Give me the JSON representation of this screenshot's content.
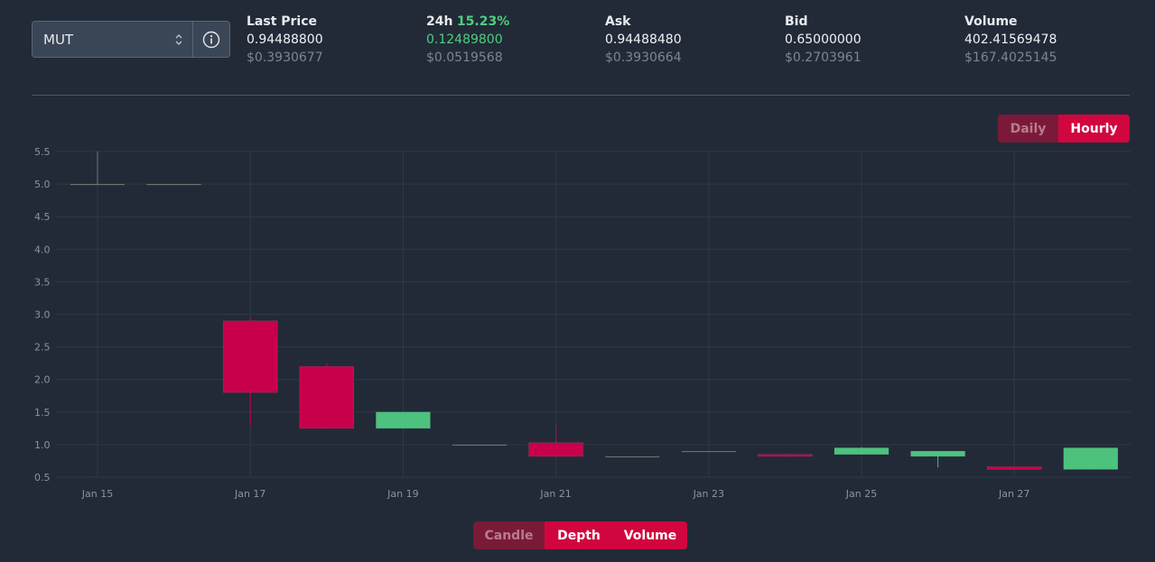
{
  "pair_selector": {
    "value": "MUT"
  },
  "stats": {
    "last_price": {
      "label": "Last Price",
      "value": "0.94488800",
      "usd": "$0.3930677"
    },
    "change_24h": {
      "label": "24h",
      "percent": "15.23%",
      "value": "0.12489800",
      "usd": "$0.0519568"
    },
    "ask": {
      "label": "Ask",
      "value": "0.94488480",
      "usd": "$0.3930664"
    },
    "bid": {
      "label": "Bid",
      "value": "0.65000000",
      "usd": "$0.2703961"
    },
    "volume": {
      "label": "Volume",
      "value": "402.41569478",
      "usd": "$167.4025145"
    }
  },
  "interval_toggle": {
    "daily": "Daily",
    "hourly": "Hourly",
    "active": "Hourly"
  },
  "view_toggle": {
    "candle": "Candle",
    "depth": "Depth",
    "volume": "Volume"
  },
  "colors": {
    "up": "#4cc27d",
    "down": "#c8004b",
    "flat": "#6f7d74",
    "grid": "#2f3849",
    "background": "#222a38"
  },
  "chart_data": {
    "type": "candlestick",
    "ylim": [
      0.5,
      5.5
    ],
    "y_ticks": [
      "0.5",
      "1.0",
      "1.5",
      "2.0",
      "2.5",
      "3.0",
      "3.5",
      "4.0",
      "4.5",
      "5.0",
      "5.5"
    ],
    "x_tick_labels": [
      "Jan 15",
      "Jan 17",
      "Jan 19",
      "Jan 21",
      "Jan 23",
      "Jan 25",
      "Jan 27"
    ],
    "candles": [
      {
        "date": "Jan 15",
        "open": 5.0,
        "high": 5.5,
        "low": 5.0,
        "close": 5.0
      },
      {
        "date": "Jan 16",
        "open": 5.0,
        "high": 5.0,
        "low": 5.0,
        "close": 5.0
      },
      {
        "date": "Jan 17",
        "open": 2.9,
        "high": 2.95,
        "low": 1.3,
        "close": 1.8
      },
      {
        "date": "Jan 18",
        "open": 2.2,
        "high": 2.25,
        "low": 1.25,
        "close": 1.25
      },
      {
        "date": "Jan 19",
        "open": 1.25,
        "high": 1.5,
        "low": 1.25,
        "close": 1.5
      },
      {
        "date": "Jan 20",
        "open": 1.0,
        "high": 1.0,
        "low": 1.0,
        "close": 1.0
      },
      {
        "date": "Jan 21",
        "open": 1.03,
        "high": 1.3,
        "low": 0.82,
        "close": 0.82
      },
      {
        "date": "Jan 22",
        "open": 0.82,
        "high": 0.82,
        "low": 0.82,
        "close": 0.82
      },
      {
        "date": "Jan 23",
        "open": 0.9,
        "high": 0.9,
        "low": 0.9,
        "close": 0.9
      },
      {
        "date": "Jan 24",
        "open": 0.85,
        "high": 0.85,
        "low": 0.82,
        "close": 0.82
      },
      {
        "date": "Jan 25",
        "open": 0.85,
        "high": 0.96,
        "low": 0.85,
        "close": 0.95
      },
      {
        "date": "Jan 26",
        "open": 0.82,
        "high": 0.9,
        "low": 0.65,
        "close": 0.9
      },
      {
        "date": "Jan 27",
        "open": 0.66,
        "high": 0.66,
        "low": 0.62,
        "close": 0.62
      },
      {
        "date": "Jan 28",
        "open": 0.62,
        "high": 0.95,
        "low": 0.62,
        "close": 0.95
      }
    ]
  }
}
